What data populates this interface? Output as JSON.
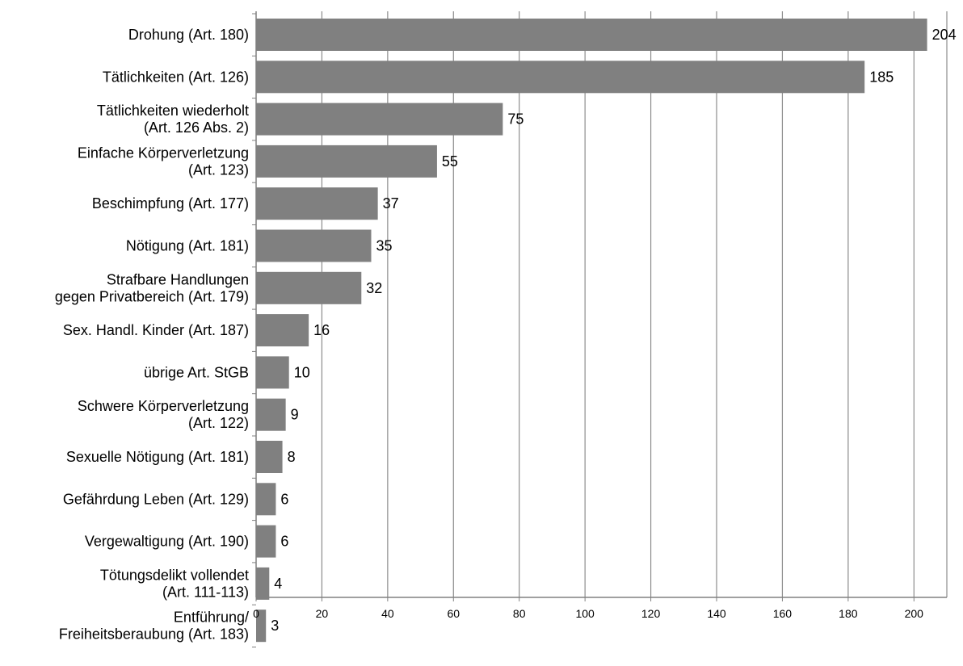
{
  "chart_data": {
    "type": "bar",
    "orientation": "horizontal",
    "title": "",
    "xlabel": "",
    "ylabel": "",
    "xlim": [
      0,
      210
    ],
    "x_ticks": [
      0,
      20,
      40,
      60,
      80,
      100,
      120,
      140,
      160,
      180,
      200
    ],
    "grid": "vertical",
    "colors": {
      "bar": "#808080",
      "grid": "#8c8c8c",
      "axis": "#808080"
    },
    "categories": [
      [
        "Drohung (Art. 180)"
      ],
      [
        "Tätlichkeiten (Art. 126)"
      ],
      [
        "Tätlichkeiten wiederholt",
        "(Art. 126 Abs. 2)"
      ],
      [
        "Einfache Körperverletzung",
        "(Art. 123)"
      ],
      [
        "Beschimpfung (Art. 177)"
      ],
      [
        "Nötigung (Art. 181)"
      ],
      [
        "Strafbare Handlungen",
        "gegen Privatbereich (Art. 179)"
      ],
      [
        "Sex. Handl. Kinder (Art. 187)"
      ],
      [
        "übrige Art. StGB"
      ],
      [
        "Schwere Körperverletzung",
        "(Art. 122)"
      ],
      [
        "Sexuelle Nötigung (Art. 181)"
      ],
      [
        "Gefährdung Leben (Art. 129)"
      ],
      [
        "Vergewaltigung (Art. 190)"
      ],
      [
        "Tötungsdelikt vollendet",
        "(Art. 111-113)"
      ],
      [
        "Entführung/",
        "Freiheitsberaubung (Art. 183)"
      ]
    ],
    "values": [
      204,
      185,
      75,
      55,
      37,
      35,
      32,
      16,
      10,
      9,
      8,
      6,
      6,
      4,
      3
    ]
  }
}
